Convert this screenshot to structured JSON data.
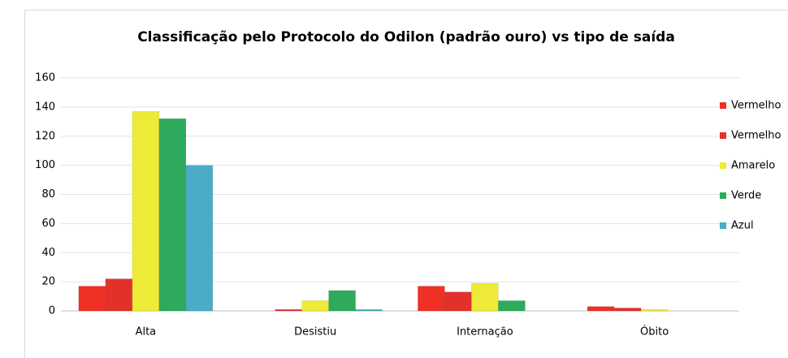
{
  "chart_data": {
    "type": "bar",
    "title": "Classificação pelo Protocolo do Odilon (padrão ouro) vs tipo de saída",
    "categories": [
      "Alta",
      "Desistiu",
      "Internação",
      "Óbito"
    ],
    "series": [
      {
        "name": "Vermelho",
        "color": "#ee3124",
        "values": [
          17,
          0,
          17,
          3
        ]
      },
      {
        "name": "Vermelho",
        "color": "#e2302a",
        "values": [
          22,
          1,
          13,
          2
        ]
      },
      {
        "name": "Amarelo",
        "color": "#eeea38",
        "values": [
          137,
          7,
          19,
          1
        ]
      },
      {
        "name": "Verde",
        "color": "#2eaa5c",
        "values": [
          132,
          14,
          7,
          0
        ]
      },
      {
        "name": "Azul",
        "color": "#4bacc6",
        "values": [
          100,
          1,
          0,
          0
        ]
      }
    ],
    "ylim": [
      0,
      160
    ],
    "yticks": [
      0,
      20,
      40,
      60,
      80,
      100,
      120,
      140,
      160
    ],
    "grid": true,
    "legend": "right"
  }
}
